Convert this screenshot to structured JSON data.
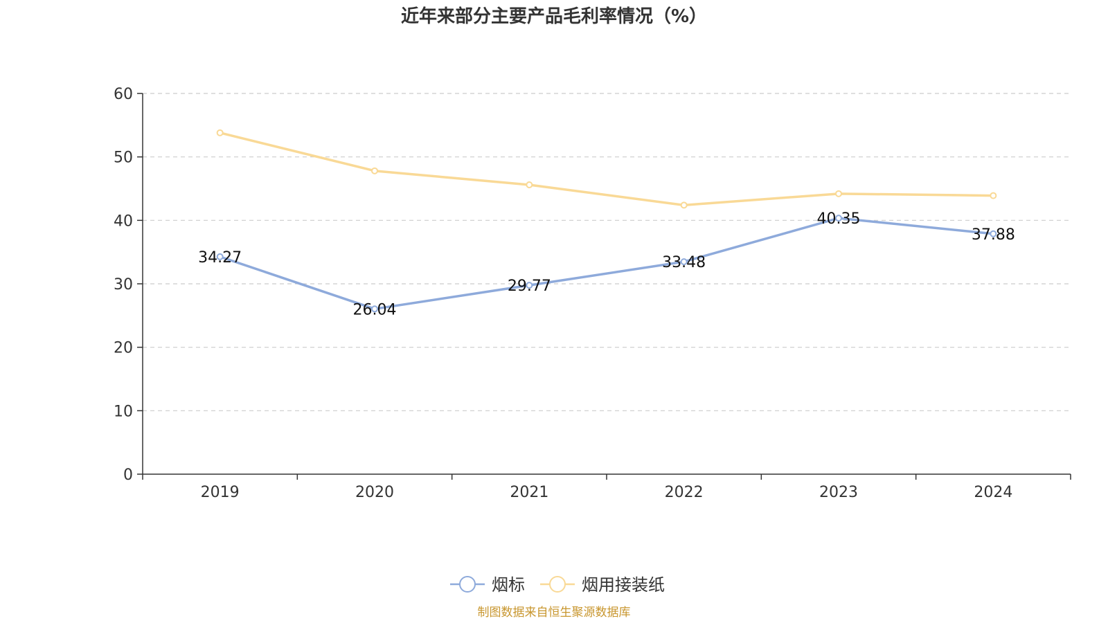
{
  "chart_data": {
    "type": "line",
    "title": "近年来部分主要产品毛利率情况（%）",
    "categories": [
      "2019",
      "2020",
      "2021",
      "2022",
      "2023",
      "2024"
    ],
    "ylim": [
      0,
      60
    ],
    "yticks": [
      0,
      10,
      20,
      30,
      40,
      50,
      60
    ],
    "grid": true,
    "legend_position": "bottom-center",
    "series": [
      {
        "name": "烟标",
        "color": "#8eaadb",
        "values": [
          34.27,
          26.04,
          29.77,
          33.48,
          40.35,
          37.88
        ],
        "labels": [
          "34.27",
          "26.04",
          "29.77",
          "33.48",
          "40.35",
          "37.88"
        ]
      },
      {
        "name": "烟用接装纸",
        "color": "#f9d996",
        "values": [
          53.8,
          47.8,
          45.6,
          42.4,
          44.2,
          43.9
        ]
      }
    ],
    "source": "制图数据来自恒生聚源数据库"
  }
}
